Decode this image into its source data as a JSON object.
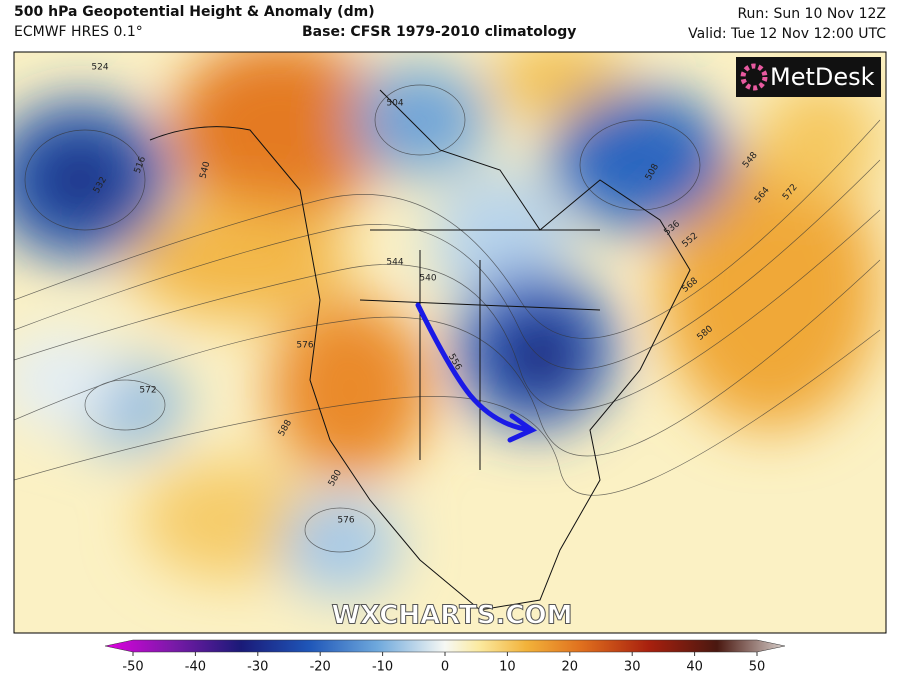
{
  "header": {
    "title": "500 hPa Geopotential Height & Anomaly (dm)",
    "model": "ECMWF HRES 0.1°",
    "base": "Base: CFSR 1979-2010 climatology",
    "run": "Run: Sun 10 Nov 12Z",
    "valid": "Valid: Tue 12 Nov 12:00 UTC"
  },
  "logo": "MetDesk",
  "watermark": "WXCHARTS.COM",
  "contour_labels": [
    524,
    516,
    532,
    540,
    504,
    508,
    548,
    564,
    572,
    536,
    552,
    568,
    580,
    544,
    540,
    556,
    576,
    572,
    588,
    580,
    576
  ],
  "colorbar": {
    "lim": [
      -50,
      50
    ],
    "ticks": [
      -50,
      -40,
      -30,
      -20,
      -10,
      0,
      10,
      20,
      30,
      40,
      50
    ]
  }
}
